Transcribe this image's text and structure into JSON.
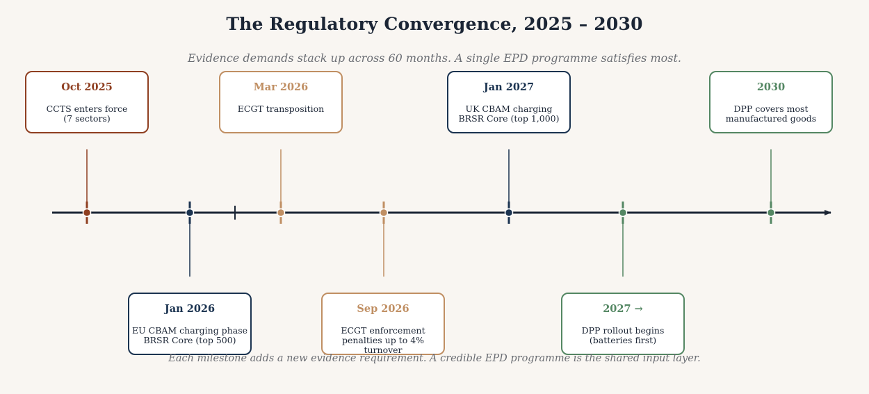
{
  "title": "The Regulatory Convergence, 2025 – 2030",
  "subtitle": "Evidence demands stack up across 60 months. A single EPD programme satisfies most.",
  "footer": "Each milestone adds a new evidence requirement. A credible EPD programme is the shared input layer.",
  "colors": {
    "rust": "#8f3f21",
    "tan": "#c08f63",
    "navy": "#1b3350",
    "green": "#548763",
    "axis": "#1b2535"
  },
  "milestones": [
    {
      "date": "Oct 2025",
      "text": "CCTS enters force\n(7 sectors)",
      "color": "rust"
    },
    {
      "date": "Jan 2026",
      "text": "EU CBAM charging phase\nBRSR Core (top 500)",
      "color": "navy"
    },
    {
      "date": "Mar 2026",
      "text": "ECGT transposition",
      "color": "tan"
    },
    {
      "date": "Sep 2026",
      "text": "ECGT enforcement\npenalties up to 4% turnover",
      "color": "tan"
    },
    {
      "date": "Jan 2027",
      "text": "UK CBAM charging\nBRSR Core (top 1,000)",
      "color": "navy"
    },
    {
      "date": "2027 →",
      "text": "DPP rollout begins\n(batteries first)",
      "color": "green"
    },
    {
      "date": "2030",
      "text": "DPP covers most\nmanufactured goods",
      "color": "green"
    }
  ]
}
